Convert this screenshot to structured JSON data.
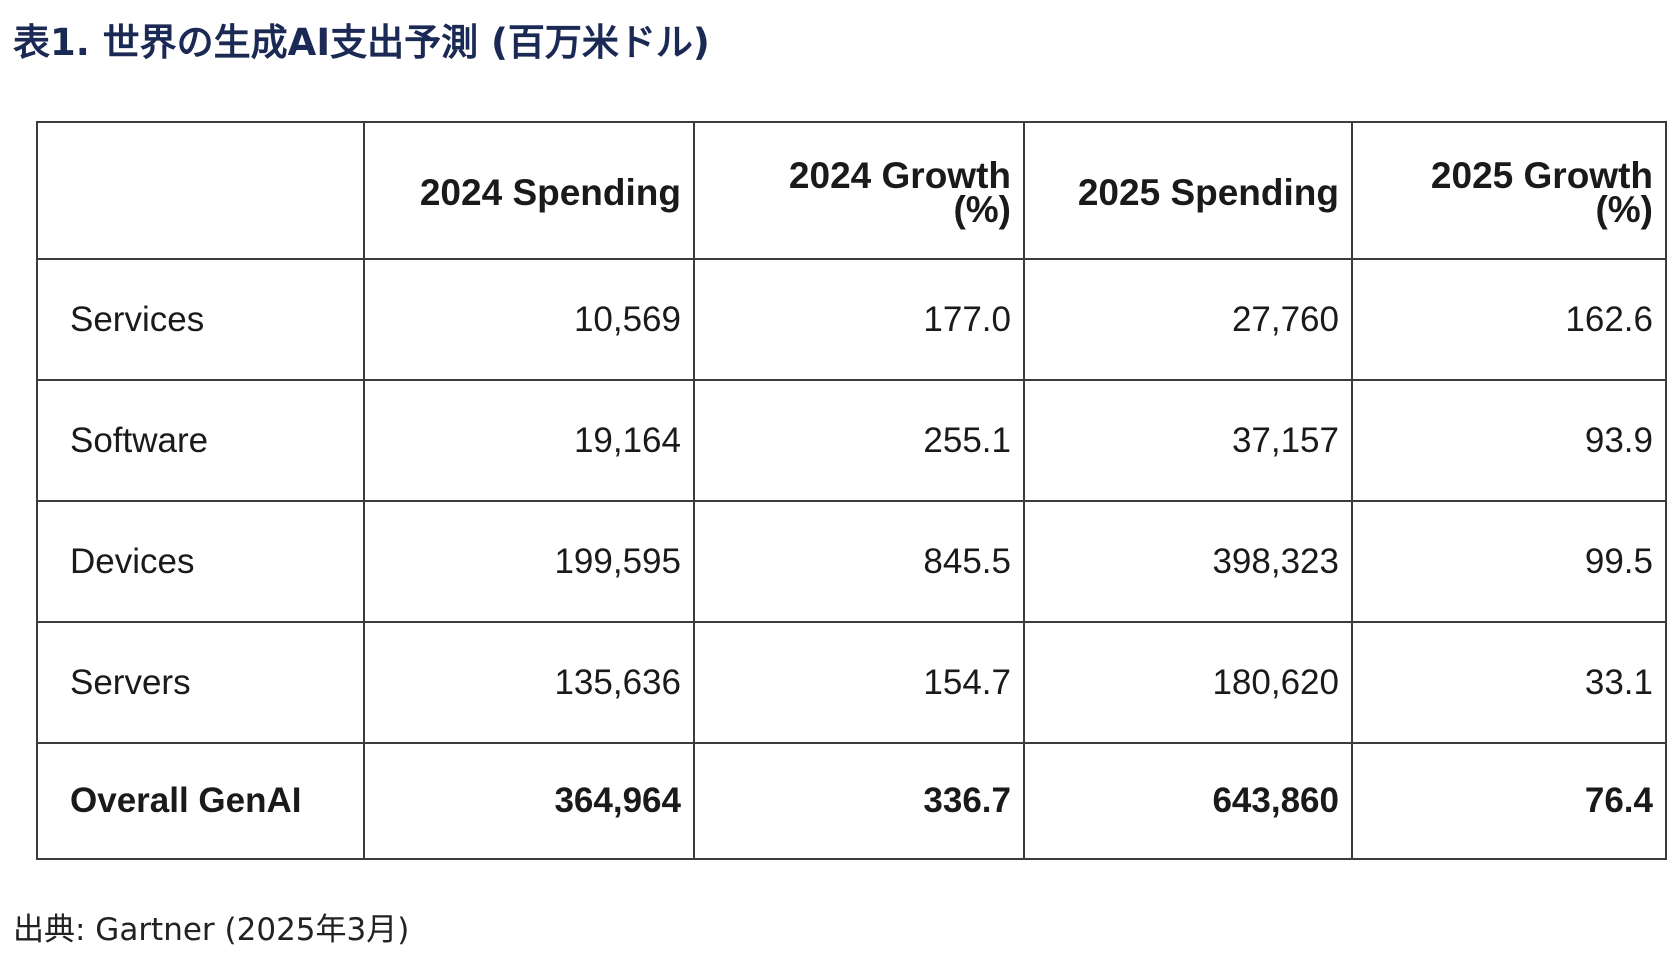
{
  "title": "表1. 世界の生成AI支出予測 (百万米ドル)",
  "table": {
    "headers": [
      "",
      "2024 Spending",
      "2024 Growth (%)",
      "2025 Spending",
      "2025 Growth (%)"
    ],
    "rows": [
      [
        "Services",
        "10,569",
        "177.0",
        "27,760",
        "162.6"
      ],
      [
        "Software",
        "19,164",
        "255.1",
        "37,157",
        "93.9"
      ],
      [
        "Devices",
        "199,595",
        "845.5",
        "398,323",
        "99.5"
      ],
      [
        "Servers",
        "135,636",
        "154.7",
        "180,620",
        "33.1"
      ]
    ],
    "total": [
      "Overall GenAI",
      "364,964",
      "336.7",
      "643,860",
      "76.4"
    ]
  },
  "source": "出典: Gartner (2025年3月)"
}
